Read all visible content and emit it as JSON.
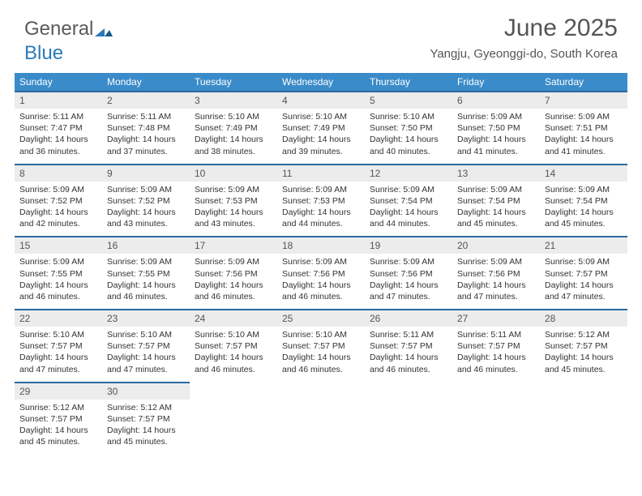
{
  "logo": {
    "text1": "General",
    "text2": "Blue"
  },
  "title": "June 2025",
  "location": "Yangju, Gyeonggi-do, South Korea",
  "colors": {
    "header_bg": "#3a8bc9",
    "header_border": "#2a6aa0",
    "daynum_bg": "#ececec",
    "text": "#333333",
    "title_text": "#555555",
    "logo_gray": "#5a5a5a",
    "logo_blue": "#2a7ab8"
  },
  "weekdays": [
    "Sunday",
    "Monday",
    "Tuesday",
    "Wednesday",
    "Thursday",
    "Friday",
    "Saturday"
  ],
  "weeks": [
    [
      {
        "n": "1",
        "sr": "5:11 AM",
        "ss": "7:47 PM",
        "dl": "14 hours and 36 minutes."
      },
      {
        "n": "2",
        "sr": "5:11 AM",
        "ss": "7:48 PM",
        "dl": "14 hours and 37 minutes."
      },
      {
        "n": "3",
        "sr": "5:10 AM",
        "ss": "7:49 PM",
        "dl": "14 hours and 38 minutes."
      },
      {
        "n": "4",
        "sr": "5:10 AM",
        "ss": "7:49 PM",
        "dl": "14 hours and 39 minutes."
      },
      {
        "n": "5",
        "sr": "5:10 AM",
        "ss": "7:50 PM",
        "dl": "14 hours and 40 minutes."
      },
      {
        "n": "6",
        "sr": "5:09 AM",
        "ss": "7:50 PM",
        "dl": "14 hours and 41 minutes."
      },
      {
        "n": "7",
        "sr": "5:09 AM",
        "ss": "7:51 PM",
        "dl": "14 hours and 41 minutes."
      }
    ],
    [
      {
        "n": "8",
        "sr": "5:09 AM",
        "ss": "7:52 PM",
        "dl": "14 hours and 42 minutes."
      },
      {
        "n": "9",
        "sr": "5:09 AM",
        "ss": "7:52 PM",
        "dl": "14 hours and 43 minutes."
      },
      {
        "n": "10",
        "sr": "5:09 AM",
        "ss": "7:53 PM",
        "dl": "14 hours and 43 minutes."
      },
      {
        "n": "11",
        "sr": "5:09 AM",
        "ss": "7:53 PM",
        "dl": "14 hours and 44 minutes."
      },
      {
        "n": "12",
        "sr": "5:09 AM",
        "ss": "7:54 PM",
        "dl": "14 hours and 44 minutes."
      },
      {
        "n": "13",
        "sr": "5:09 AM",
        "ss": "7:54 PM",
        "dl": "14 hours and 45 minutes."
      },
      {
        "n": "14",
        "sr": "5:09 AM",
        "ss": "7:54 PM",
        "dl": "14 hours and 45 minutes."
      }
    ],
    [
      {
        "n": "15",
        "sr": "5:09 AM",
        "ss": "7:55 PM",
        "dl": "14 hours and 46 minutes."
      },
      {
        "n": "16",
        "sr": "5:09 AM",
        "ss": "7:55 PM",
        "dl": "14 hours and 46 minutes."
      },
      {
        "n": "17",
        "sr": "5:09 AM",
        "ss": "7:56 PM",
        "dl": "14 hours and 46 minutes."
      },
      {
        "n": "18",
        "sr": "5:09 AM",
        "ss": "7:56 PM",
        "dl": "14 hours and 46 minutes."
      },
      {
        "n": "19",
        "sr": "5:09 AM",
        "ss": "7:56 PM",
        "dl": "14 hours and 47 minutes."
      },
      {
        "n": "20",
        "sr": "5:09 AM",
        "ss": "7:56 PM",
        "dl": "14 hours and 47 minutes."
      },
      {
        "n": "21",
        "sr": "5:09 AM",
        "ss": "7:57 PM",
        "dl": "14 hours and 47 minutes."
      }
    ],
    [
      {
        "n": "22",
        "sr": "5:10 AM",
        "ss": "7:57 PM",
        "dl": "14 hours and 47 minutes."
      },
      {
        "n": "23",
        "sr": "5:10 AM",
        "ss": "7:57 PM",
        "dl": "14 hours and 47 minutes."
      },
      {
        "n": "24",
        "sr": "5:10 AM",
        "ss": "7:57 PM",
        "dl": "14 hours and 46 minutes."
      },
      {
        "n": "25",
        "sr": "5:10 AM",
        "ss": "7:57 PM",
        "dl": "14 hours and 46 minutes."
      },
      {
        "n": "26",
        "sr": "5:11 AM",
        "ss": "7:57 PM",
        "dl": "14 hours and 46 minutes."
      },
      {
        "n": "27",
        "sr": "5:11 AM",
        "ss": "7:57 PM",
        "dl": "14 hours and 46 minutes."
      },
      {
        "n": "28",
        "sr": "5:12 AM",
        "ss": "7:57 PM",
        "dl": "14 hours and 45 minutes."
      }
    ],
    [
      {
        "n": "29",
        "sr": "5:12 AM",
        "ss": "7:57 PM",
        "dl": "14 hours and 45 minutes."
      },
      {
        "n": "30",
        "sr": "5:12 AM",
        "ss": "7:57 PM",
        "dl": "14 hours and 45 minutes."
      },
      null,
      null,
      null,
      null,
      null
    ]
  ],
  "labels": {
    "sunrise": "Sunrise:",
    "sunset": "Sunset:",
    "daylight": "Daylight:"
  }
}
